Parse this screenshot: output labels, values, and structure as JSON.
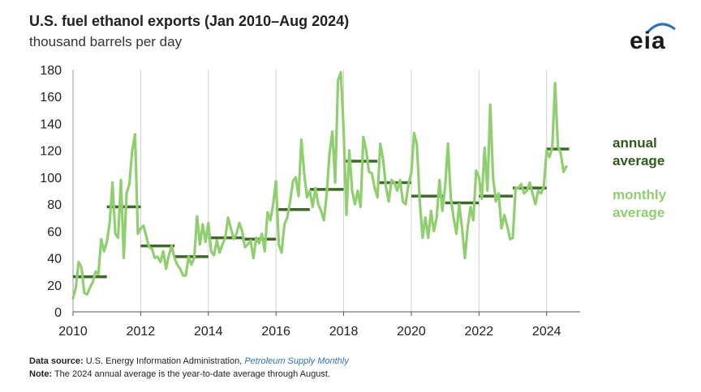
{
  "header": {
    "title": "U.S. fuel ethanol exports (Jan 2010–Aug 2024)",
    "subtitle": "thousand barrels per day",
    "logo_text": "eia"
  },
  "legend": {
    "annual_line1": "annual",
    "annual_line2": "average",
    "monthly_line1": "monthly",
    "monthly_line2": "average"
  },
  "footer": {
    "source_label": "Data source:",
    "source_text": " U.S. Energy Information Administration, ",
    "source_pub": "Petroleum Supply Monthly",
    "note_label": "Note:",
    "note_text": " The 2024 annual average is the year-to-date average through August."
  },
  "colors": {
    "monthly": "#8fcf6f",
    "annual": "#3d6b26",
    "grid": "#cfcfcf"
  },
  "chart_data": {
    "type": "line",
    "title": "U.S. fuel ethanol exports (Jan 2010–Aug 2024)",
    "ylabel": "thousand barrels per day",
    "ylim": [
      0,
      180
    ],
    "yticks": [
      0,
      20,
      40,
      60,
      80,
      100,
      120,
      140,
      160,
      180
    ],
    "xlim": [
      2010,
      2024.75
    ],
    "xticks": [
      2010,
      2012,
      2014,
      2016,
      2018,
      2020,
      2022,
      2024
    ],
    "grid": "vertical",
    "legend_position": "right",
    "series": [
      {
        "name": "monthly average",
        "style": "line",
        "monthly_values": [
          10,
          18,
          37,
          33,
          14,
          13,
          18,
          22,
          30,
          28,
          54,
          45,
          52,
          66,
          96,
          58,
          55,
          98,
          40,
          88,
          95,
          120,
          132,
          58,
          62,
          64,
          56,
          48,
          47,
          40,
          41,
          37,
          45,
          32,
          42,
          49,
          40,
          35,
          32,
          27,
          27,
          41,
          35,
          40,
          71,
          50,
          65,
          52,
          66,
          45,
          42,
          53,
          44,
          50,
          55,
          70,
          62,
          54,
          58,
          66,
          60,
          48,
          50,
          53,
          40,
          55,
          51,
          58,
          45,
          74,
          68,
          80,
          97,
          50,
          44,
          65,
          70,
          82,
          97,
          100,
          86,
          128,
          103,
          85,
          90,
          78,
          92,
          80,
          75,
          68,
          88,
          118,
          134,
          96,
          172,
          178,
          135,
          72,
          120,
          90,
          80,
          90,
          78,
          130,
          120,
          104,
          103,
          92,
          85,
          125,
          113,
          93,
          82,
          98,
          96,
          90,
          98,
          82,
          80,
          95,
          103,
          133,
          124,
          82,
          55,
          70,
          55,
          75,
          60,
          70,
          98,
          75,
          93,
          125,
          85,
          70,
          58,
          80,
          62,
          40,
          63,
          78,
          68,
          105,
          100,
          84,
          122,
          90,
          154,
          100,
          82,
          88,
          62,
          72,
          64,
          54,
          55,
          92,
          92,
          95,
          88,
          90,
          96,
          88,
          80,
          90,
          88,
          93,
          120,
          115,
          122,
          170,
          123,
          118,
          104,
          108
        ]
      },
      {
        "name": "annual average",
        "style": "step",
        "years": [
          2010,
          2011,
          2012,
          2013,
          2014,
          2015,
          2016,
          2017,
          2018,
          2019,
          2020,
          2021,
          2022,
          2023,
          2024
        ],
        "values": [
          26,
          78,
          49,
          41,
          55,
          54,
          76,
          91,
          112,
          96,
          86,
          81,
          86,
          92,
          121
        ]
      }
    ]
  }
}
